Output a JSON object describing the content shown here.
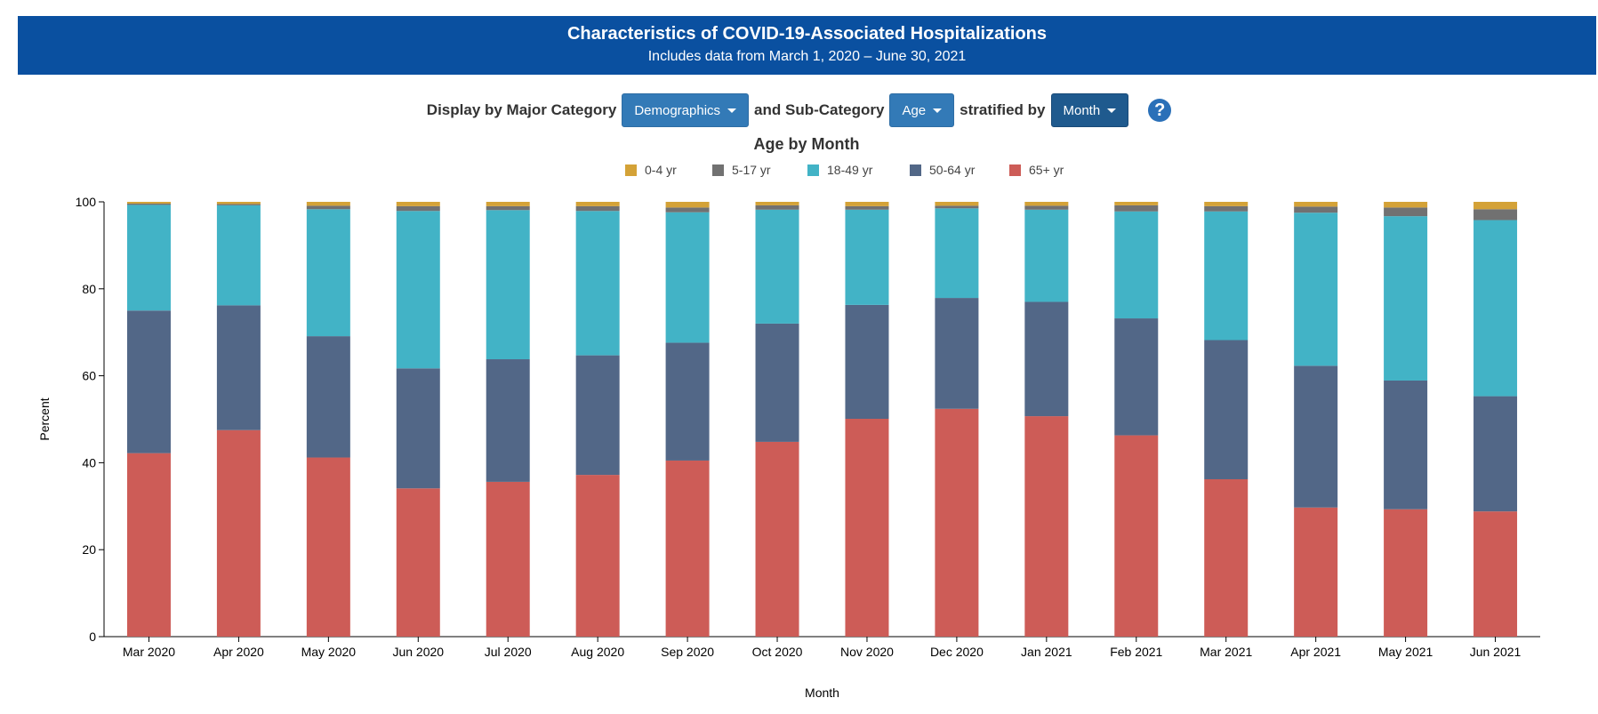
{
  "header": {
    "title": "Characteristics of COVID-19-Associated Hospitalizations",
    "subtitle": "Includes data from March 1, 2020 – June 30, 2021"
  },
  "controls": {
    "major_label": "Display by Major Category",
    "major_value": "Demographics",
    "sub_label": "and Sub-Category",
    "sub_value": "Age",
    "strat_label": "stratified by",
    "strat_value": "Month",
    "help_glyph": "?"
  },
  "chart_data": {
    "type": "bar",
    "stacked": true,
    "title": "Age by Month",
    "xlabel": "Month",
    "ylabel": "Percent",
    "ylim": [
      0,
      100
    ],
    "yticks": [
      0,
      20,
      40,
      60,
      80,
      100
    ],
    "legend_position": "top-center",
    "categories": [
      "Mar 2020",
      "Apr 2020",
      "May 2020",
      "Jun 2020",
      "Jul 2020",
      "Aug 2020",
      "Sep 2020",
      "Oct 2020",
      "Nov 2020",
      "Dec 2020",
      "Jan 2021",
      "Feb 2021",
      "Mar 2021",
      "Apr 2021",
      "May 2021",
      "Jun 2021"
    ],
    "series": [
      {
        "name": "65+ yr",
        "color": "#cd5c57",
        "values": [
          42.2,
          47.5,
          41.2,
          34.1,
          35.6,
          37.2,
          40.5,
          44.8,
          50.1,
          52.4,
          50.7,
          46.3,
          36.2,
          29.7,
          29.3,
          28.8
        ]
      },
      {
        "name": "50-64 yr",
        "color": "#526787",
        "values": [
          32.8,
          28.7,
          27.9,
          27.6,
          28.2,
          27.5,
          27.1,
          27.2,
          26.2,
          25.5,
          26.3,
          26.9,
          32.0,
          32.6,
          29.6,
          26.5
        ]
      },
      {
        "name": "18-49 yr",
        "color": "#42b3c6",
        "values": [
          24.3,
          23.0,
          29.2,
          36.2,
          34.3,
          33.2,
          30.0,
          26.2,
          21.9,
          20.6,
          21.2,
          24.6,
          29.6,
          35.2,
          37.8,
          40.5
        ]
      },
      {
        "name": "5-17 yr",
        "color": "#717171",
        "values": [
          0.3,
          0.3,
          0.8,
          1.1,
          0.9,
          1.1,
          1.1,
          1.0,
          0.8,
          0.6,
          0.9,
          1.4,
          1.2,
          1.4,
          2.0,
          2.5
        ]
      },
      {
        "name": "0-4 yr",
        "color": "#d4a237",
        "values": [
          0.4,
          0.5,
          0.9,
          1.0,
          1.0,
          1.0,
          1.3,
          0.8,
          1.0,
          0.9,
          0.9,
          0.8,
          1.0,
          1.1,
          1.3,
          1.7
        ]
      }
    ]
  }
}
